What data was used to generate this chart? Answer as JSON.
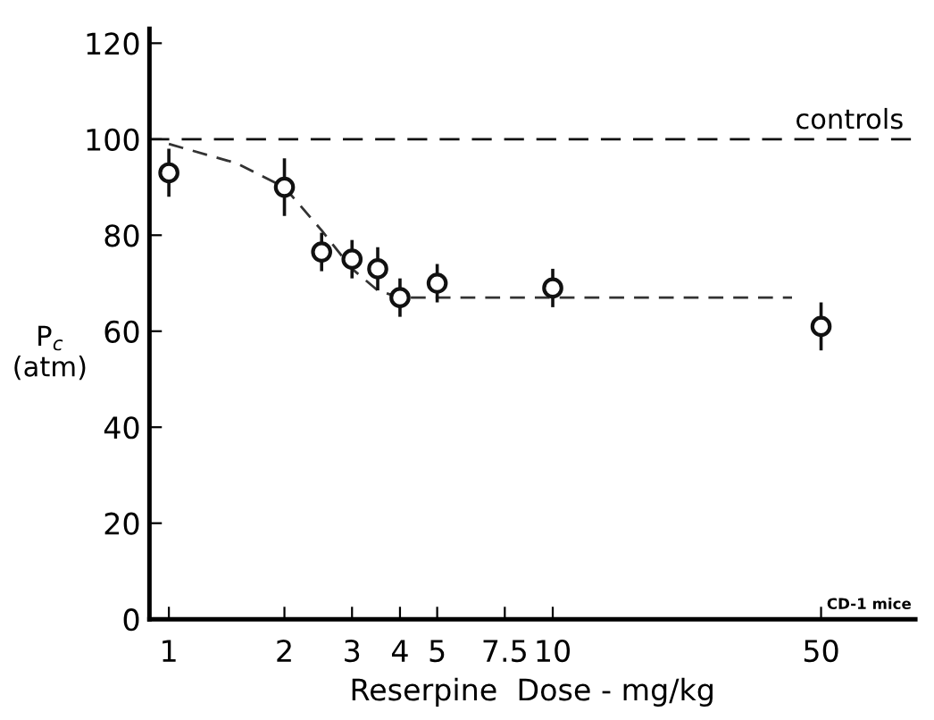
{
  "chart_data": {
    "type": "scatter",
    "xlabel": "Reserpine  Dose - mg/kg",
    "ylabel": "P$_{c}$\n(atm)",
    "log": "x",
    "xlim": [
      0.89,
      88
    ],
    "xticks": [
      1,
      2,
      3,
      4,
      5,
      7.5,
      10,
      50
    ],
    "ylim": [
      0,
      123
    ],
    "yticks": [
      0,
      20,
      40,
      60,
      80,
      100,
      120
    ],
    "grid": false,
    "marker": "circle",
    "series": [
      {
        "color": "#111111",
        "x": [
          1,
          2,
          2.5,
          3,
          3.5,
          4,
          5,
          10,
          50
        ],
        "values": [
          93,
          90,
          76.5,
          75,
          73,
          67,
          70,
          69,
          61
        ],
        "errors": [
          5,
          6,
          4,
          4,
          4.5,
          4,
          4,
          4,
          5
        ]
      },
      {
        "type": "line",
        "color": "#333333",
        "line_style": "dashed",
        "marker": "none",
        "x": [
          1,
          1.5,
          2,
          2.5,
          3,
          3.5,
          4,
          5,
          10,
          42
        ],
        "values": [
          99,
          95,
          90,
          81,
          73,
          68.5,
          67,
          67,
          67,
          67
        ]
      }
    ],
    "ref_lines": [
      {
        "axis": "y",
        "value": 100,
        "label": "controls",
        "line_style": "dashed",
        "color": "#111111"
      }
    ],
    "annotations": [
      "CD-1 mice"
    ]
  }
}
